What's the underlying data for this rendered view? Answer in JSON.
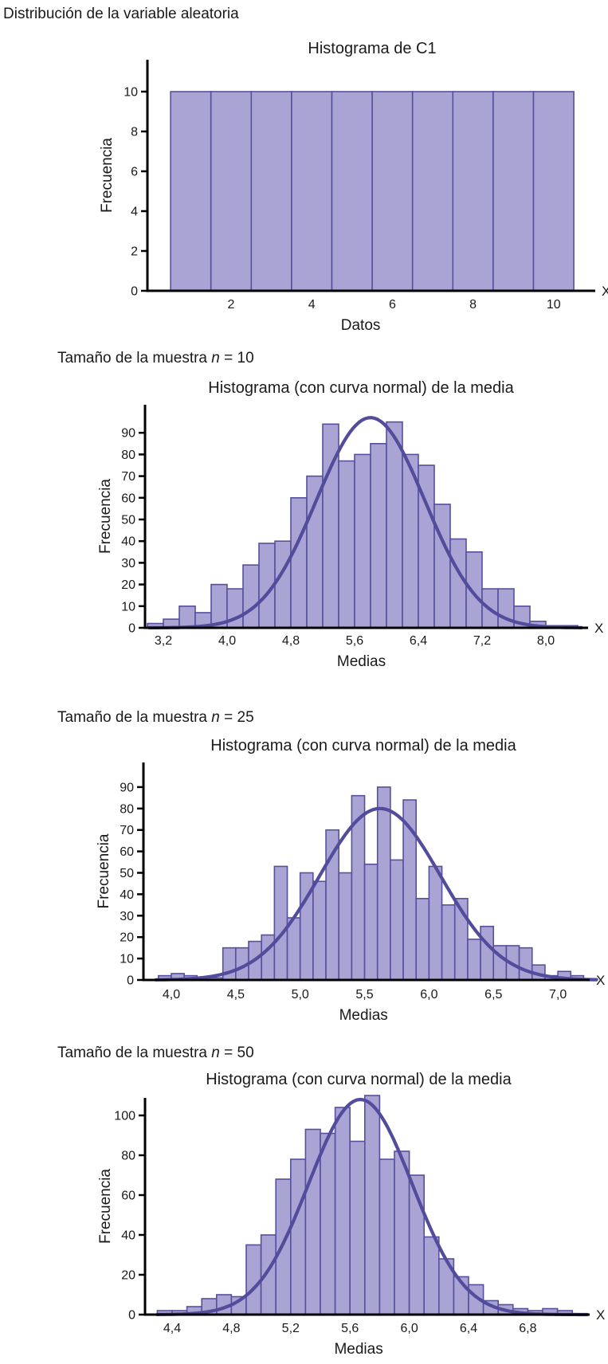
{
  "page": {
    "heading": "Distribución de la variable aleatoria"
  },
  "subtitles": [
    {
      "prefix": "Tamaño de la muestra ",
      "var": "n",
      "rest": " = 10"
    },
    {
      "prefix": "Tamaño de la muestra ",
      "var": "n",
      "rest": " = 25"
    },
    {
      "prefix": "Tamaño de la muestra ",
      "var": "n",
      "rest": " = 50"
    }
  ],
  "colors": {
    "bar_fill": "#a9a4d3",
    "bar_stroke": "#55519c",
    "curve_stroke": "#514c9b",
    "axis": "#000000",
    "text": "#1a1a1a"
  },
  "chart_data": [
    {
      "type": "bar",
      "title": "Histograma de C1",
      "xlabel": "Datos",
      "ylabel": "Frecuencia",
      "axis_end_label": "X",
      "bin_start": 0.5,
      "bin_width": 1,
      "values": [
        10,
        10,
        10,
        10,
        10,
        10,
        10,
        10,
        10,
        10
      ],
      "y_ticks": {
        "values": [
          0,
          2,
          4,
          6,
          8,
          10
        ],
        "labels": [
          "0",
          "2",
          "4",
          "6",
          "8",
          "10"
        ]
      },
      "x_ticks": {
        "values": [
          2,
          4,
          6,
          8,
          10
        ],
        "labels": [
          "2",
          "4",
          "6",
          "8",
          "10"
        ]
      },
      "ylim": [
        0,
        11.6
      ],
      "xlim": [
        0.5,
        10.5
      ],
      "grid": false,
      "curve": null
    },
    {
      "type": "bar",
      "title": "Histograma (con curva normal) de la media",
      "xlabel": "Medias",
      "ylabel": "Frecuencia",
      "axis_end_label": "X",
      "bin_start": 3.0,
      "bin_width": 0.2,
      "values": [
        2,
        4,
        10,
        7,
        20,
        18,
        29,
        39,
        40,
        60,
        70,
        94,
        77,
        80,
        85,
        95,
        80,
        75,
        57,
        41,
        35,
        18,
        18,
        10,
        3,
        1,
        1
      ],
      "y_ticks": {
        "values": [
          0,
          10,
          20,
          30,
          40,
          50,
          60,
          70,
          80,
          90
        ],
        "labels": [
          "0",
          "10",
          "20",
          "30",
          "40",
          "50",
          "60",
          "70",
          "80",
          "90"
        ]
      },
      "x_ticks": {
        "values": [
          3.2,
          4.0,
          4.8,
          5.6,
          6.4,
          7.2,
          8.0
        ],
        "labels": [
          "3,2",
          "4,0",
          "4,8",
          "5,6",
          "6,4",
          "7,2",
          "8,0"
        ]
      },
      "ylim": [
        0,
        103
      ],
      "xlim": [
        3.0,
        8.4
      ],
      "grid": false,
      "curve": {
        "amplitude": 97,
        "mean": 5.8,
        "sd": 0.68,
        "x_min": 3.02,
        "x_max": 8.45
      }
    },
    {
      "type": "bar",
      "title": "Histograma (con curva normal) de la media",
      "xlabel": "Medias",
      "ylabel": "Frecuencia",
      "axis_end_label": "X",
      "bin_start": 3.9,
      "bin_width": 0.1,
      "values": [
        2,
        3,
        2,
        1,
        1,
        15,
        15,
        18,
        21,
        53,
        29,
        50,
        46,
        70,
        50,
        86,
        54,
        90,
        56,
        84,
        38,
        53,
        35,
        38,
        19,
        25,
        16,
        16,
        15,
        7,
        2,
        4,
        2
      ],
      "y_ticks": {
        "values": [
          0,
          10,
          20,
          30,
          40,
          50,
          60,
          70,
          80,
          90
        ],
        "labels": [
          "0",
          "10",
          "20",
          "30",
          "40",
          "50",
          "60",
          "70",
          "80",
          "90"
        ]
      },
      "x_ticks": {
        "values": [
          4.0,
          4.5,
          5.0,
          5.5,
          6.0,
          6.5,
          7.0
        ],
        "labels": [
          "4,0",
          "4,5",
          "5,0",
          "5,5",
          "6,0",
          "6,5",
          "7,0"
        ]
      },
      "ylim": [
        0,
        101
      ],
      "xlim": [
        3.9,
        7.2
      ],
      "grid": false,
      "curve": {
        "amplitude": 80,
        "mean": 5.62,
        "sd": 0.47,
        "x_min": 3.88,
        "x_max": 7.3
      }
    },
    {
      "type": "bar",
      "title": "Histograma (con curva normal) de la media",
      "xlabel": "Medias",
      "ylabel": "Frecuencia",
      "axis_end_label": "X",
      "bin_start": 4.3,
      "bin_width": 0.1,
      "values": [
        2,
        2,
        4,
        8,
        10,
        9,
        35,
        40,
        68,
        78,
        93,
        91,
        104,
        87,
        110,
        78,
        82,
        70,
        39,
        28,
        19,
        15,
        7,
        5,
        3,
        2,
        3,
        2
      ],
      "y_ticks": {
        "values": [
          0,
          20,
          40,
          60,
          80,
          100
        ],
        "labels": [
          "0",
          "20",
          "40",
          "60",
          "80",
          "100"
        ]
      },
      "x_ticks": {
        "values": [
          4.4,
          4.8,
          5.2,
          5.6,
          6.0,
          6.4,
          6.8
        ],
        "labels": [
          "4,4",
          "4,8",
          "5,2",
          "5,6",
          "6,0",
          "6,4",
          "6,8"
        ]
      },
      "ylim": [
        0,
        109
      ],
      "xlim": [
        4.3,
        7.1
      ],
      "grid": false,
      "curve": {
        "amplitude": 108,
        "mean": 5.67,
        "sd": 0.35,
        "x_min": 4.3,
        "x_max": 7.2
      }
    }
  ]
}
